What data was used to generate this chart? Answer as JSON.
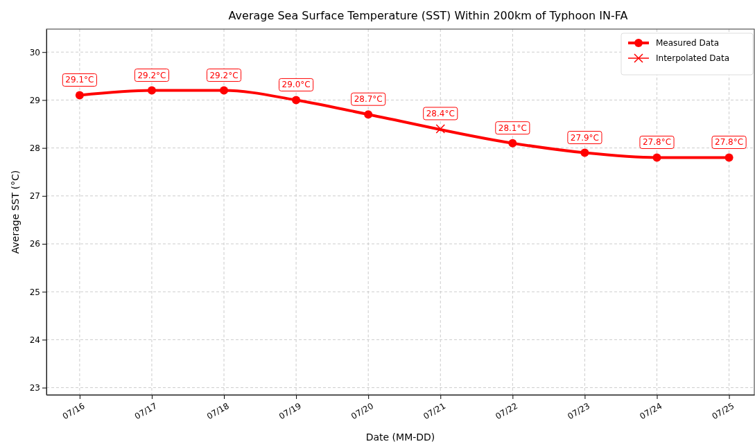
{
  "chart_data": {
    "type": "line",
    "title": "Average Sea Surface Temperature (SST) Within 200km of Typhoon IN-FA",
    "xlabel": "Date (MM-DD)",
    "ylabel": "Average SST (°C)",
    "categories": [
      "07/16",
      "07/17",
      "07/18",
      "07/19",
      "07/20",
      "07/21",
      "07/22",
      "07/23",
      "07/24",
      "07/25"
    ],
    "series": [
      {
        "name": "Measured Data",
        "color": "#ff0000",
        "marker": "circle",
        "values": [
          29.1,
          29.2,
          29.2,
          29.0,
          28.7,
          null,
          28.1,
          27.9,
          27.8,
          27.8
        ],
        "value_labels": [
          "29.1°C",
          "29.2°C",
          "29.2°C",
          "29.0°C",
          "28.7°C",
          null,
          "28.1°C",
          "27.9°C",
          "27.8°C",
          "27.8°C"
        ]
      },
      {
        "name": "Interpolated Data",
        "type": "scatter",
        "color": "#ff0000",
        "marker": "cross",
        "values": [
          null,
          null,
          null,
          null,
          null,
          28.4,
          null,
          null,
          null,
          null
        ],
        "value_labels": [
          null,
          null,
          null,
          null,
          null,
          "28.4°C",
          null,
          null,
          null,
          null
        ]
      }
    ],
    "ylim": [
      22.85,
      30.48
    ],
    "yticks": [
      23,
      24,
      25,
      26,
      27,
      28,
      29,
      30
    ],
    "grid": true,
    "legend": "top right"
  }
}
